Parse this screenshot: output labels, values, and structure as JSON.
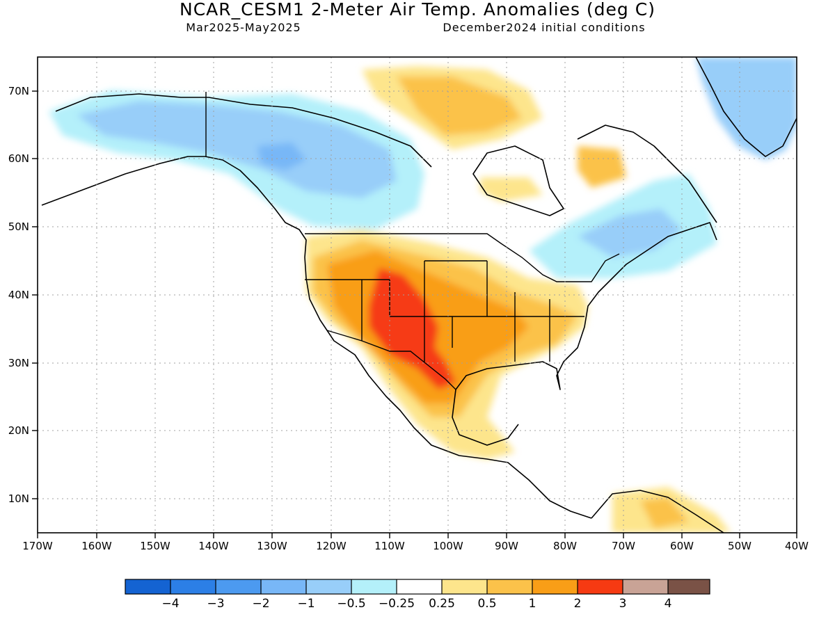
{
  "title": "NCAR_CESM1 2-Meter Air Temp. Anomalies (deg C)",
  "period": "Mar2025-May2025",
  "init": "December2024 initial conditions",
  "map": {
    "lon_ticks": [
      "170W",
      "160W",
      "150W",
      "140W",
      "130W",
      "120W",
      "110W",
      "100W",
      "90W",
      "80W",
      "70W",
      "60W",
      "50W",
      "40W"
    ],
    "lat_ticks": [
      "70N",
      "60N",
      "50N",
      "40N",
      "30N",
      "20N",
      "10N"
    ],
    "lon_range": [
      -170,
      -40
    ],
    "lat_range": [
      5,
      75
    ],
    "grid": true
  },
  "colorbar": {
    "colors": [
      "#1463d2",
      "#2c7fe6",
      "#4c9af0",
      "#78b7f7",
      "#98cef9",
      "#b4f0fa",
      "#ffffff",
      "#fde58c",
      "#fbc24a",
      "#f99e17",
      "#f63a12",
      "#c9a396",
      "#7a5246"
    ],
    "labels": [
      "−4",
      "−3",
      "−2",
      "−1",
      "−0.5",
      "−0.25",
      "0.25",
      "0.5",
      "1",
      "2",
      "3",
      "4"
    ]
  },
  "legend_colors": {
    "ocean": "#ffffff",
    "coast": "#000000"
  }
}
